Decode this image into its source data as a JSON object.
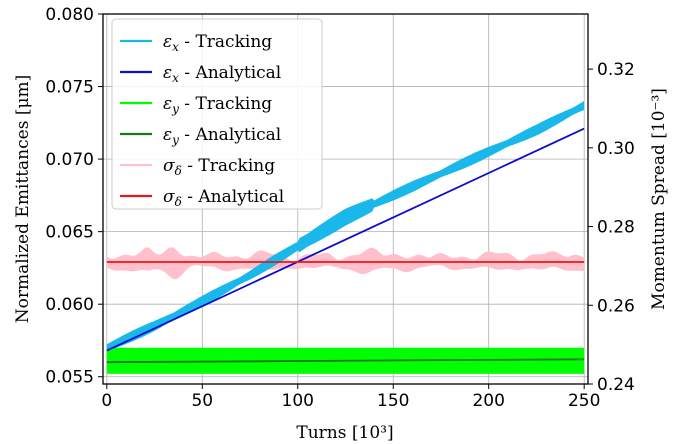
{
  "chart_data": {
    "type": "line",
    "xlabel": "Turns [10³]",
    "ylabel_left": "Normalized Emittances [μm]",
    "ylabel_right": "Momentum Spread [10⁻³]",
    "xlim": [
      -2,
      252
    ],
    "ylim_left": [
      0.0545,
      0.08
    ],
    "ylim_right": [
      0.24,
      0.334
    ],
    "xticks": [
      "0",
      "50",
      "100",
      "150",
      "200",
      "250"
    ],
    "yticks_left": [
      "0.055",
      "0.060",
      "0.065",
      "0.070",
      "0.075",
      "0.080"
    ],
    "yticks_right": [
      "0.24",
      "0.26",
      "0.28",
      "0.30",
      "0.32"
    ],
    "grid": true,
    "legend_position": "top-left",
    "series": [
      {
        "name": "εx - Tracking",
        "sym": "ε",
        "sub": "x",
        "rest": " - Tracking",
        "color": "#1ab8ea",
        "axis": "left",
        "style": "band",
        "x": [
          0,
          25,
          50,
          75,
          100,
          125,
          150,
          175,
          200,
          225,
          250
        ],
        "y": [
          0.057,
          0.0585,
          0.0602,
          0.062,
          0.064,
          0.066,
          0.0675,
          0.069,
          0.0705,
          0.072,
          0.0737
        ]
      },
      {
        "name": "εx - Analytical",
        "sym": "ε",
        "sub": "x",
        "rest": " - Analytical",
        "color": "#0c0ccc",
        "axis": "left",
        "style": "line",
        "x": [
          0,
          250
        ],
        "y": [
          0.0568,
          0.0721
        ]
      },
      {
        "name": "εy - Tracking",
        "sym": "ε",
        "sub": "y",
        "rest": " - Tracking",
        "color": "#00ff00",
        "axis": "left",
        "style": "band",
        "x": [
          0,
          250
        ],
        "y": [
          0.0561,
          0.0561
        ],
        "band_halfwidth": 0.0009
      },
      {
        "name": "εy - Analytical",
        "sym": "ε",
        "sub": "y",
        "rest": " - Analytical",
        "color": "#1a7a1a",
        "axis": "left",
        "style": "line",
        "x": [
          0,
          250
        ],
        "y": [
          0.056,
          0.0562
        ]
      },
      {
        "name": "σδ - Tracking",
        "sym": "σ",
        "sub": "δ",
        "rest": " - Tracking",
        "color": "#ffc0cb",
        "axis": "right",
        "style": "band",
        "x": [
          0,
          250
        ],
        "y": [
          0.271,
          0.271
        ]
      },
      {
        "name": "σδ - Analytical",
        "sym": "σ",
        "sub": "δ",
        "rest": " - Analytical",
        "color": "#e6191b",
        "axis": "right",
        "style": "line",
        "x": [
          0,
          250
        ],
        "y": [
          0.271,
          0.271
        ]
      }
    ]
  }
}
